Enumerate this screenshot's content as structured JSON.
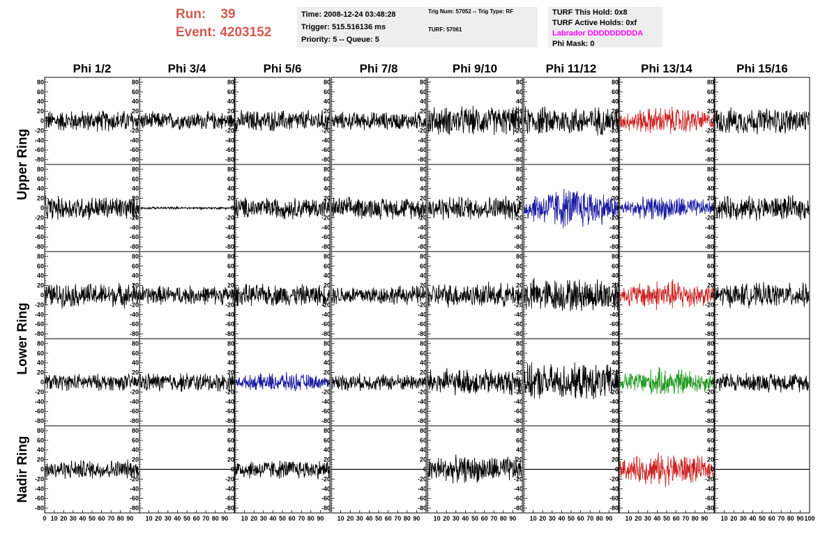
{
  "header": {
    "run_label": "Run:",
    "run_value": "39",
    "event_label": "Event:",
    "event_value": "4203152",
    "time_line": "Time: 2008-12-24 03:48:28",
    "trigger_line": "Trigger: 515.516136 ms",
    "priority_line": "Priority: 5 -- Queue: 5",
    "trig_num_line": "Trig Num: 57052 -- Trig Type: RF",
    "turf_line": "TURF: 57061",
    "turf_hold_line": "TURF This Hold: 0x8",
    "turf_active_line": "TURF Active Holds: 0xf",
    "labrador_line": "Labrador DDDDDDDDDA",
    "phi_mask_line": "Phi Mask: 0"
  },
  "colors": {
    "run_text": "#d25a50",
    "black_trace": "#000000",
    "red_trace": "#cc2222",
    "blue_trace": "#1a1aa0",
    "green_trace": "#229922",
    "labrador_text": "#ff00ff"
  },
  "chart_data": {
    "type": "line",
    "grid": false,
    "columns": [
      "Phi 1/2",
      "Phi 3/4",
      "Phi 5/6",
      "Phi 7/8",
      "Phi 9/10",
      "Phi 11/12",
      "Phi 13/14",
      "Phi 15/16"
    ],
    "rows": [
      "Upper Ring",
      "Upper Ring",
      "Lower Ring",
      "Lower Ring",
      "Nadir Ring"
    ],
    "row_labels": [
      {
        "text": "Upper Ring",
        "rows": [
          0,
          1
        ]
      },
      {
        "text": "Lower Ring",
        "rows": [
          2,
          3
        ]
      },
      {
        "text": "Nadir Ring",
        "rows": [
          4
        ]
      }
    ],
    "ylim": [
      -90,
      90
    ],
    "xlim": [
      0,
      100
    ],
    "y_ticks": [
      -80,
      -60,
      -40,
      -20,
      0,
      20,
      40,
      60,
      80
    ],
    "x_tick_labels": [
      "0",
      "10",
      "20",
      "30",
      "40",
      "50",
      "60",
      "70",
      "80",
      "90",
      "100"
    ],
    "panels": [
      [
        "black",
        "black",
        "black",
        "black",
        "black",
        "black",
        "red",
        "black"
      ],
      [
        "black",
        "black",
        "black",
        "black",
        "black",
        "blue",
        "blue",
        "black"
      ],
      [
        "black",
        "black",
        "black",
        "black",
        "black",
        "black",
        "red",
        "black"
      ],
      [
        "black",
        "black",
        "blue",
        "black",
        "black",
        "black",
        "green",
        "black"
      ],
      [
        "black",
        "flat",
        "black",
        "flat",
        "black",
        "flat",
        "red",
        "flat"
      ]
    ],
    "amplitude": [
      [
        18,
        15,
        18,
        15,
        24,
        24,
        24,
        22
      ],
      [
        20,
        2,
        18,
        18,
        20,
        35,
        20,
        20
      ],
      [
        20,
        16,
        18,
        16,
        20,
        28,
        26,
        20
      ],
      [
        14,
        16,
        16,
        14,
        22,
        30,
        24,
        16
      ],
      [
        16,
        0,
        16,
        0,
        22,
        0,
        28,
        0
      ]
    ]
  }
}
